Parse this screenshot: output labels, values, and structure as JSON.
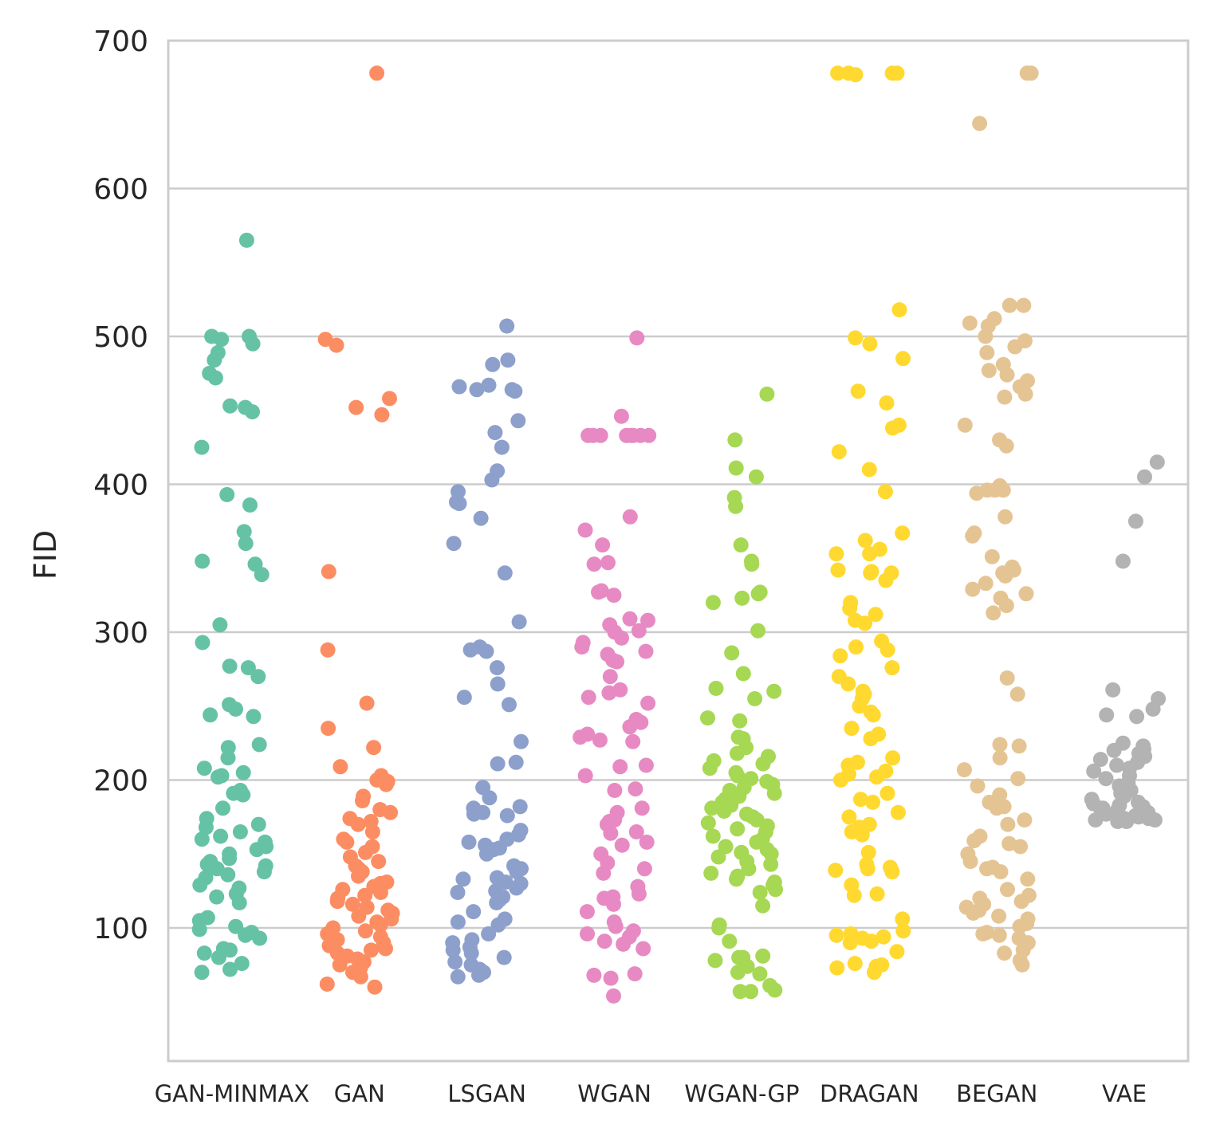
{
  "chart_data": {
    "type": "scatter",
    "subtype": "strip",
    "title": "",
    "xlabel": "",
    "ylabel": "FID",
    "ylim": [
      10,
      700
    ],
    "yticks": [
      100,
      200,
      300,
      400,
      500,
      600,
      700
    ],
    "grid": "horizontal",
    "legend": "none",
    "categories": [
      "GAN-MINMAX",
      "GAN",
      "LSGAN",
      "WGAN",
      "WGAN-GP",
      "DRAGAN",
      "BEGAN",
      "VAE"
    ],
    "colors": [
      "#66c2a5",
      "#fc8d62",
      "#8da0cb",
      "#e78ac3",
      "#a6d854",
      "#ffd92f",
      "#e5c494",
      "#b3b3b3"
    ],
    "series": [
      {
        "name": "GAN-MINMAX",
        "values": [
          565,
          500,
          500,
          498,
          495,
          489,
          484,
          475,
          472,
          453,
          452,
          449,
          425,
          393,
          386,
          368,
          360,
          348,
          346,
          339,
          305,
          293,
          277,
          276,
          270,
          251,
          248,
          244,
          243,
          224,
          222,
          215,
          208,
          205,
          203,
          202,
          193,
          191,
          190,
          181,
          174,
          170,
          168,
          165,
          162,
          160,
          158,
          155,
          153,
          150,
          147,
          145,
          143,
          142,
          140,
          138,
          136,
          134,
          129,
          127,
          123,
          121,
          117,
          107,
          105,
          101,
          99,
          97,
          95,
          93,
          86,
          85,
          83,
          80,
          76,
          72,
          70
        ]
      },
      {
        "name": "GAN",
        "values": [
          678,
          498,
          494,
          458,
          452,
          447,
          341,
          288,
          252,
          235,
          222,
          209,
          203,
          200,
          199,
          197,
          189,
          186,
          180,
          178,
          174,
          172,
          170,
          165,
          160,
          158,
          155,
          151,
          148,
          145,
          142,
          140,
          138,
          135,
          131,
          130,
          128,
          126,
          124,
          122,
          120,
          118,
          116,
          114,
          112,
          110,
          108,
          106,
          104,
          102,
          100,
          98,
          96,
          94,
          92,
          90,
          88,
          86,
          85,
          83,
          81,
          79,
          77,
          75,
          73,
          70,
          67,
          62,
          60
        ]
      },
      {
        "name": "LSGAN",
        "values": [
          507,
          484,
          481,
          467,
          466,
          464,
          464,
          463,
          443,
          435,
          425,
          409,
          403,
          395,
          388,
          387,
          377,
          360,
          340,
          307,
          290,
          288,
          287,
          276,
          265,
          256,
          251,
          226,
          212,
          211,
          195,
          188,
          182,
          181,
          178,
          177,
          176,
          166,
          163,
          160,
          158,
          156,
          154,
          153,
          150,
          142,
          140,
          138,
          134,
          133,
          131,
          130,
          127,
          125,
          124,
          121,
          119,
          117,
          111,
          106,
          104,
          102,
          96,
          92,
          90,
          87,
          85,
          83,
          80,
          77,
          75,
          72,
          70,
          68,
          67
        ]
      },
      {
        "name": "WGAN",
        "values": [
          499,
          446,
          433,
          433,
          433,
          433,
          433,
          433,
          433,
          433,
          378,
          369,
          359,
          347,
          346,
          328,
          327,
          325,
          309,
          308,
          305,
          301,
          300,
          296,
          293,
          290,
          287,
          285,
          281,
          280,
          270,
          261,
          259,
          256,
          252,
          241,
          239,
          236,
          231,
          229,
          227,
          226,
          210,
          209,
          203,
          194,
          193,
          181,
          178,
          173,
          172,
          170,
          165,
          164,
          158,
          156,
          150,
          144,
          140,
          137,
          128,
          123,
          121,
          120,
          116,
          111,
          104,
          101,
          98,
          96,
          94,
          91,
          89,
          86,
          69,
          68,
          66,
          54
        ]
      },
      {
        "name": "WGAN-GP",
        "values": [
          461,
          430,
          411,
          405,
          391,
          385,
          359,
          348,
          346,
          327,
          326,
          323,
          320,
          301,
          286,
          272,
          262,
          260,
          255,
          242,
          240,
          229,
          228,
          222,
          218,
          216,
          213,
          211,
          208,
          205,
          203,
          201,
          199,
          197,
          195,
          193,
          191,
          189,
          187,
          185,
          183,
          181,
          179,
          177,
          175,
          173,
          171,
          169,
          167,
          165,
          162,
          160,
          158,
          155,
          153,
          151,
          150,
          148,
          145,
          143,
          140,
          137,
          135,
          133,
          131,
          129,
          126,
          124,
          115,
          102,
          100,
          91,
          81,
          80,
          80,
          78,
          74,
          70,
          69,
          61,
          58,
          57,
          57
        ]
      },
      {
        "name": "DRAGAN",
        "values": [
          678,
          678,
          678,
          677,
          678,
          518,
          499,
          495,
          485,
          463,
          455,
          440,
          438,
          422,
          410,
          395,
          367,
          362,
          356,
          353,
          353,
          342,
          341,
          340,
          340,
          335,
          320,
          316,
          312,
          308,
          306,
          294,
          290,
          288,
          284,
          276,
          270,
          265,
          260,
          258,
          255,
          250,
          246,
          244,
          235,
          231,
          228,
          215,
          212,
          210,
          206,
          204,
          202,
          200,
          191,
          187,
          185,
          178,
          175,
          170,
          168,
          165,
          163,
          151,
          143,
          141,
          140,
          139,
          138,
          129,
          123,
          122,
          106,
          98,
          96,
          95,
          94,
          93,
          91,
          90,
          84,
          76,
          75,
          74,
          73,
          70
        ]
      },
      {
        "name": "BEGAN",
        "values": [
          678,
          678,
          644,
          521,
          521,
          512,
          509,
          507,
          500,
          497,
          493,
          489,
          481,
          477,
          474,
          470,
          466,
          461,
          459,
          440,
          430,
          426,
          399,
          396,
          394,
          396,
          396,
          378,
          365,
          367,
          351,
          344,
          342,
          340,
          338,
          333,
          329,
          326,
          323,
          318,
          313,
          269,
          258,
          224,
          223,
          215,
          207,
          201,
          196,
          190,
          185,
          182,
          181,
          173,
          170,
          162,
          159,
          157,
          155,
          150,
          145,
          141,
          140,
          138,
          133,
          126,
          122,
          120,
          118,
          116,
          114,
          112,
          110,
          108,
          106,
          103,
          101,
          97,
          96,
          95,
          93,
          90,
          85,
          83,
          78,
          75
        ]
      },
      {
        "name": "VAE",
        "values": [
          415,
          405,
          375,
          348,
          261,
          255,
          248,
          244,
          243,
          225,
          223,
          221,
          220,
          218,
          216,
          214,
          212,
          210,
          208,
          206,
          203,
          201,
          198,
          196,
          193,
          191,
          189,
          187,
          185,
          184,
          183,
          182,
          181,
          180,
          179,
          178,
          177,
          176,
          175,
          174,
          174,
          173,
          173,
          172,
          172
        ]
      }
    ]
  }
}
